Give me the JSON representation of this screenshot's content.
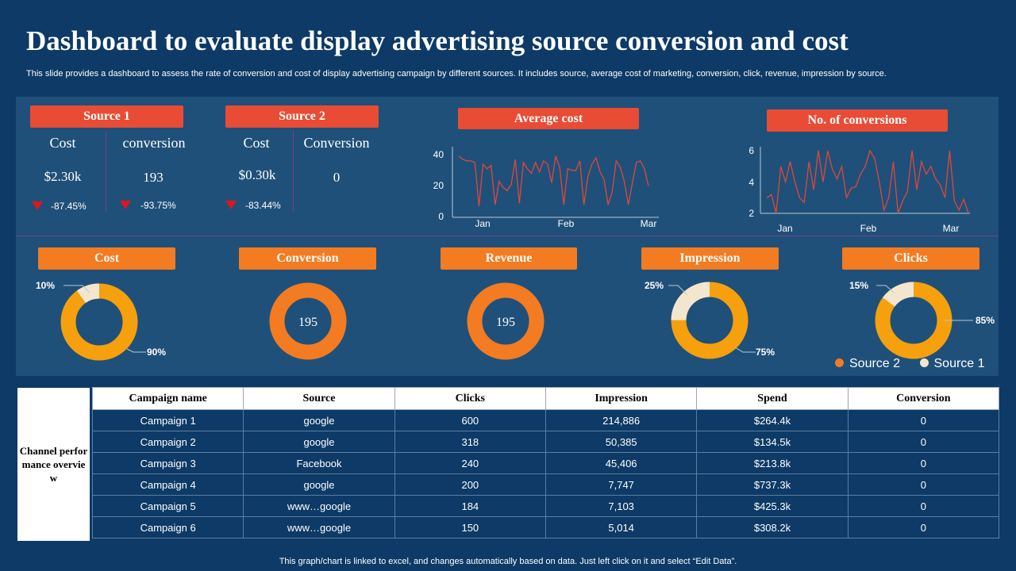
{
  "header": {
    "title": "Dashboard to evaluate display advertising source conversion and cost",
    "subtitle": "This slide provides a dashboard to assess the rate of conversion and cost of display advertising campaign by different sources. It includes source, average cost of marketing, conversion, click, revenue, impression by source."
  },
  "sources": [
    {
      "label": "Source 1",
      "metrics": [
        {
          "label": "Cost",
          "value": "$2.30k",
          "change": "-87.45%"
        },
        {
          "label": "conversion",
          "value": "193",
          "change": "-93.75%"
        }
      ]
    },
    {
      "label": "Source 2",
      "metrics": [
        {
          "label": "Cost",
          "value": "$0.30k",
          "change": "-83.44%"
        },
        {
          "label": "Conversion",
          "value": "0",
          "change": ""
        }
      ]
    }
  ],
  "colors": {
    "background": "#0d3a66",
    "panel": "#1f5079",
    "pill_red": "#e84c35",
    "pill_orange": "#f37b21",
    "source2": "#f5a00c",
    "source1": "#f3e6cf",
    "ring_orange": "#f37b21",
    "line": "#e0473a",
    "down_arrow": "#e0161c"
  },
  "chart_data": [
    {
      "type": "line",
      "title": "Average cost",
      "x_ticks": [
        "Jan",
        "Feb",
        "Mar"
      ],
      "ylim": [
        0,
        40
      ],
      "y_ticks": [
        0,
        20,
        40
      ],
      "values": [
        39,
        37,
        36,
        36,
        35,
        7,
        34,
        31,
        33,
        8,
        23,
        19,
        17,
        21,
        37,
        9,
        35,
        31,
        28,
        35,
        29,
        36,
        34,
        22,
        39,
        32,
        8,
        31,
        30,
        30,
        36,
        8,
        26,
        34,
        38,
        29,
        24,
        8,
        16,
        36,
        32,
        23,
        8,
        22,
        35,
        36,
        31,
        20
      ]
    },
    {
      "type": "line",
      "title": "No. of conversions",
      "x_ticks": [
        "Jan",
        "Feb",
        "Mar"
      ],
      "ylim": [
        2,
        6
      ],
      "y_ticks": [
        2,
        4,
        6
      ],
      "values": [
        3,
        3.2,
        2,
        5,
        4,
        5.3,
        4,
        3,
        2.7,
        5.3,
        3.5,
        6,
        4,
        6,
        4.8,
        4.2,
        5,
        3,
        3.6,
        3.7,
        4.5,
        5,
        6,
        5.5,
        4,
        2.2,
        3,
        5.3,
        2,
        2.8,
        3.4,
        6,
        3.5,
        5.3,
        4.5,
        5,
        4.2,
        3.8,
        3,
        6,
        2.8,
        2.2,
        2.9,
        2
      ]
    },
    {
      "type": "pie",
      "title": "Cost",
      "series": [
        {
          "name": "Source 2",
          "value": 90
        },
        {
          "name": "Source 1",
          "value": 10
        }
      ],
      "labels": [
        "90%",
        "10%"
      ]
    },
    {
      "type": "pie",
      "title": "Conversion",
      "center_value": "195"
    },
    {
      "type": "pie",
      "title": "Revenue",
      "center_value": "195"
    },
    {
      "type": "pie",
      "title": "Impression",
      "series": [
        {
          "name": "Source 2",
          "value": 75
        },
        {
          "name": "Source 1",
          "value": 25
        }
      ],
      "labels": [
        "75%",
        "25%"
      ]
    },
    {
      "type": "pie",
      "title": "Clicks",
      "series": [
        {
          "name": "Source 2",
          "value": 85
        },
        {
          "name": "Source 1",
          "value": 15
        }
      ],
      "labels": [
        "85%",
        "15%"
      ]
    }
  ],
  "legend": {
    "source2": "Source 2",
    "source1": "Source 1"
  },
  "table": {
    "side_label": "Channel performance overview",
    "headers": [
      "Campaign name",
      "Source",
      "Clicks",
      "Impression",
      "Spend",
      "Conversion"
    ],
    "rows": [
      [
        "Campaign  1",
        "google",
        "600",
        "214,886",
        "$264.4k",
        "0"
      ],
      [
        "Campaign  2",
        "google",
        "318",
        "50,385",
        "$134.5k",
        "0"
      ],
      [
        "Campaign  3",
        "Facebook",
        "240",
        "45,406",
        "$213.8k",
        "0"
      ],
      [
        "Campaign  4",
        "google",
        "200",
        "7,747",
        "$737.3k",
        "0"
      ],
      [
        "Campaign  5",
        "www…google",
        "184",
        "7,103",
        "$425.3k",
        "0"
      ],
      [
        "Campaign  6",
        "www…google",
        "150",
        "5,014",
        "$308.2k",
        "0"
      ]
    ]
  },
  "footer": "This graph/chart is linked to excel,  and changes automatically based on data. Just left click on it and select “Edit Data”."
}
